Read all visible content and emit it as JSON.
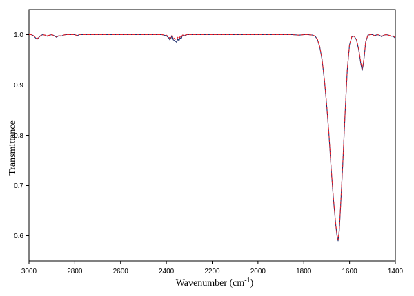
{
  "chart_data": {
    "type": "line",
    "xlabel": "Wavenumber (cm",
    "xlabel_superscript": "-1",
    "xlabel_close": ")",
    "ylabel": "Transmittance",
    "xlim": [
      3000,
      1400
    ],
    "ylim": [
      0.55,
      1.05
    ],
    "x_reversed": true,
    "grid": false,
    "x_ticks": [
      3000,
      2800,
      2600,
      2400,
      2200,
      2000,
      1800,
      1600,
      1400
    ],
    "y_ticks": [
      0.6,
      0.7,
      0.8,
      0.9,
      1.0
    ],
    "x_tick_labels": [
      "3000",
      "2800",
      "2600",
      "2400",
      "2200",
      "2000",
      "1800",
      "1600",
      "1400"
    ],
    "y_tick_labels": [
      "0.6",
      "0.7",
      "0.8",
      "0.9",
      "1.0"
    ],
    "series": [
      {
        "color": "#1f2f6e",
        "style": "solid",
        "x": [
          3000,
          2990,
          2980,
          2970,
          2965,
          2960,
          2950,
          2940,
          2930,
          2920,
          2910,
          2900,
          2890,
          2880,
          2870,
          2860,
          2850,
          2840,
          2800,
          2790,
          2780,
          2700,
          2600,
          2500,
          2420,
          2400,
          2390,
          2385,
          2380,
          2375,
          2370,
          2362,
          2355,
          2350,
          2345,
          2340,
          2335,
          2330,
          2320,
          2310,
          2300,
          2200,
          2100,
          2000,
          1900,
          1850,
          1820,
          1800,
          1780,
          1760,
          1750,
          1740,
          1730,
          1720,
          1710,
          1700,
          1690,
          1680,
          1670,
          1660,
          1655,
          1650,
          1645,
          1640,
          1630,
          1620,
          1610,
          1600,
          1590,
          1580,
          1570,
          1560,
          1550,
          1545,
          1540,
          1535,
          1530,
          1520,
          1510,
          1500,
          1490,
          1480,
          1470,
          1460,
          1450,
          1440,
          1430,
          1420,
          1410,
          1400
        ],
        "y": [
          1.0,
          1.0,
          0.998,
          0.993,
          0.991,
          0.993,
          0.998,
          1.0,
          0.999,
          0.997,
          0.999,
          1.0,
          0.998,
          0.995,
          0.998,
          0.997,
          0.999,
          1.0,
          1.0,
          0.998,
          1.0,
          1.0,
          1.0,
          1.0,
          1.0,
          0.998,
          0.994,
          0.99,
          0.993,
          0.999,
          0.99,
          0.988,
          0.985,
          0.992,
          0.988,
          0.994,
          0.992,
          0.999,
          0.998,
          1.0,
          1.0,
          1.0,
          1.0,
          1.0,
          1.0,
          1.0,
          0.999,
          1.0,
          1.0,
          0.999,
          0.997,
          0.99,
          0.975,
          0.95,
          0.91,
          0.86,
          0.8,
          0.73,
          0.67,
          0.62,
          0.6,
          0.59,
          0.61,
          0.65,
          0.74,
          0.84,
          0.93,
          0.98,
          0.996,
          0.997,
          0.99,
          0.97,
          0.94,
          0.929,
          0.94,
          0.96,
          0.985,
          0.999,
          1.0,
          1.0,
          0.998,
          1.0,
          0.999,
          0.996,
          0.999,
          1.0,
          0.999,
          0.997,
          0.997,
          0.993
        ]
      },
      {
        "color": "#e8202a",
        "style": "dashed",
        "x": [
          3000,
          2990,
          2980,
          2970,
          2965,
          2960,
          2950,
          2940,
          2930,
          2920,
          2910,
          2900,
          2890,
          2880,
          2870,
          2860,
          2850,
          2840,
          2800,
          2790,
          2780,
          2700,
          2600,
          2500,
          2420,
          2400,
          2390,
          2385,
          2380,
          2375,
          2370,
          2362,
          2355,
          2350,
          2345,
          2340,
          2335,
          2330,
          2320,
          2310,
          2300,
          2200,
          2100,
          2000,
          1900,
          1850,
          1820,
          1800,
          1780,
          1760,
          1750,
          1740,
          1730,
          1720,
          1710,
          1700,
          1690,
          1680,
          1670,
          1660,
          1655,
          1650,
          1645,
          1640,
          1630,
          1620,
          1610,
          1600,
          1590,
          1580,
          1570,
          1560,
          1550,
          1545,
          1540,
          1535,
          1530,
          1520,
          1510,
          1500,
          1490,
          1480,
          1470,
          1460,
          1450,
          1440,
          1430,
          1420,
          1410,
          1400
        ],
        "y": [
          1.0,
          1.0,
          0.998,
          0.994,
          0.992,
          0.994,
          0.998,
          1.0,
          0.999,
          0.998,
          0.999,
          1.0,
          0.998,
          0.996,
          0.998,
          0.998,
          0.999,
          1.0,
          1.0,
          0.998,
          1.0,
          1.0,
          1.0,
          1.0,
          1.0,
          0.999,
          0.996,
          0.993,
          0.995,
          0.999,
          0.994,
          0.992,
          0.99,
          0.995,
          0.992,
          0.996,
          0.995,
          0.999,
          0.999,
          1.0,
          1.0,
          1.0,
          1.0,
          1.0,
          1.0,
          1.0,
          0.999,
          1.0,
          1.0,
          0.999,
          0.997,
          0.991,
          0.976,
          0.951,
          0.912,
          0.862,
          0.802,
          0.732,
          0.672,
          0.622,
          0.602,
          0.592,
          0.612,
          0.652,
          0.742,
          0.842,
          0.931,
          0.981,
          0.996,
          0.997,
          0.991,
          0.972,
          0.943,
          0.932,
          0.943,
          0.962,
          0.986,
          0.999,
          1.0,
          1.0,
          0.998,
          1.0,
          0.999,
          0.997,
          0.999,
          1.0,
          0.999,
          0.998,
          0.998,
          0.994
        ]
      }
    ]
  }
}
